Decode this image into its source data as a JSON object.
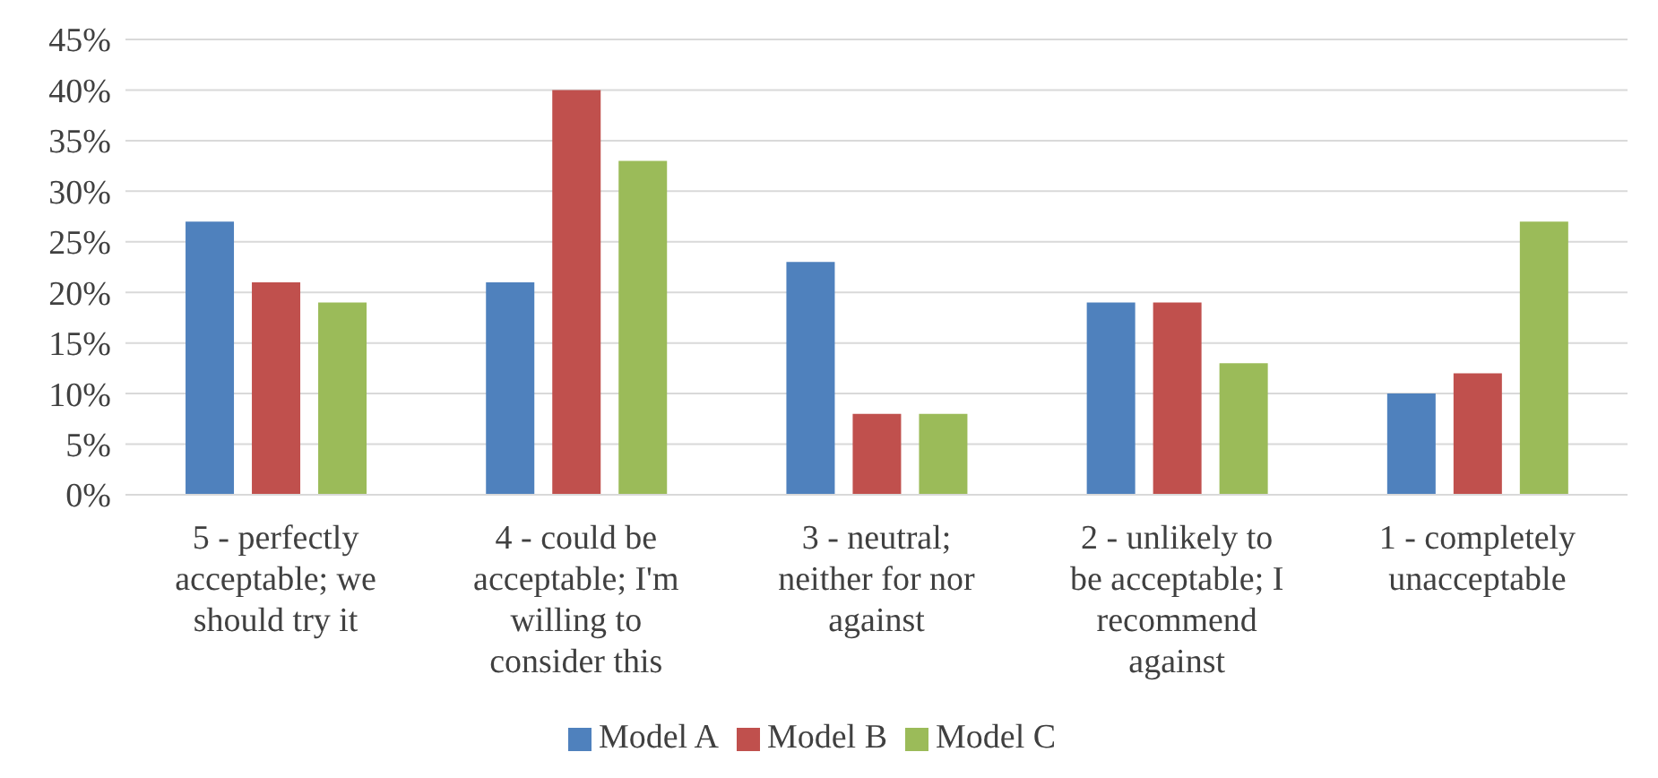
{
  "chart_data": {
    "type": "bar",
    "categories": [
      "5 - perfectly acceptable; we should try it",
      "4 - could be acceptable; I'm willing to consider this",
      "3 - neutral; neither for nor against",
      "2 - unlikely to be acceptable; I recommend against",
      "1 - completely unacceptable"
    ],
    "series": [
      {
        "name": "Model A",
        "color": "#4f81bd",
        "values": [
          27,
          21,
          23,
          19,
          10
        ]
      },
      {
        "name": "Model B",
        "color": "#c0504d",
        "values": [
          21,
          40,
          8,
          19,
          12
        ]
      },
      {
        "name": "Model C",
        "color": "#9bbb59",
        "values": [
          19,
          33,
          8,
          13,
          27
        ]
      }
    ],
    "ylim": [
      0,
      45
    ],
    "yticks": [
      {
        "value": 0,
        "label": "0%"
      },
      {
        "value": 5,
        "label": "5%"
      },
      {
        "value": 10,
        "label": "10%"
      },
      {
        "value": 15,
        "label": "15%"
      },
      {
        "value": 20,
        "label": "20%"
      },
      {
        "value": 25,
        "label": "25%"
      },
      {
        "value": 30,
        "label": "30%"
      },
      {
        "value": 35,
        "label": "35%"
      },
      {
        "value": 40,
        "label": "40%"
      },
      {
        "value": 45,
        "label": "45%"
      }
    ],
    "grid": "y",
    "legend": "bottom"
  }
}
